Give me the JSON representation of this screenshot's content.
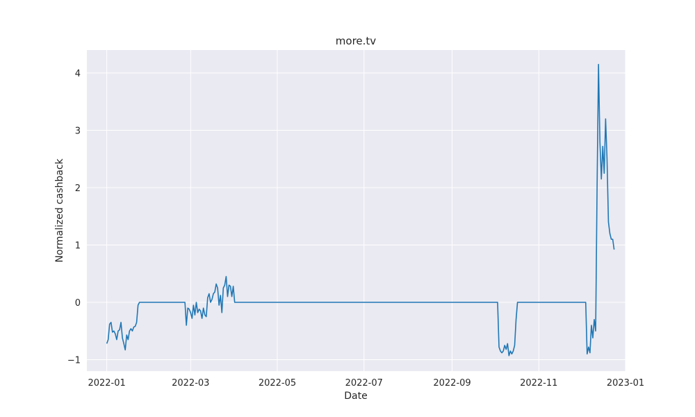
{
  "chart_data": {
    "type": "line",
    "title": "more.tv",
    "xlabel": "Date",
    "ylabel": "Normalized cashback",
    "x_tick_labels": [
      "2022-01",
      "2022-03",
      "2022-05",
      "2022-07",
      "2022-09",
      "2022-11",
      "2023-01"
    ],
    "y_tick_labels": [
      "−1",
      "0",
      "1",
      "2",
      "3",
      "4"
    ],
    "x_range": [
      "2021-12-18",
      "2023-01-01"
    ],
    "ylim": [
      -1.2,
      4.4
    ],
    "grid": true,
    "colors": {
      "background": "#eaeaf2",
      "grid": "#ffffff",
      "line": "#1f77b4"
    },
    "series": [
      {
        "points": [
          [
            "2022-01-01",
            -0.72
          ],
          [
            "2022-01-02",
            -0.65
          ],
          [
            "2022-01-03",
            -0.38
          ],
          [
            "2022-01-04",
            -0.35
          ],
          [
            "2022-01-05",
            -0.52
          ],
          [
            "2022-01-06",
            -0.5
          ],
          [
            "2022-01-07",
            -0.55
          ],
          [
            "2022-01-08",
            -0.65
          ],
          [
            "2022-01-09",
            -0.5
          ],
          [
            "2022-01-10",
            -0.48
          ],
          [
            "2022-01-11",
            -0.35
          ],
          [
            "2022-01-12",
            -0.62
          ],
          [
            "2022-01-13",
            -0.72
          ],
          [
            "2022-01-14",
            -0.83
          ],
          [
            "2022-01-15",
            -0.57
          ],
          [
            "2022-01-16",
            -0.65
          ],
          [
            "2022-01-17",
            -0.5
          ],
          [
            "2022-01-18",
            -0.46
          ],
          [
            "2022-01-19",
            -0.5
          ],
          [
            "2022-01-20",
            -0.43
          ],
          [
            "2022-01-21",
            -0.42
          ],
          [
            "2022-01-22",
            -0.35
          ],
          [
            "2022-01-23",
            -0.05
          ],
          [
            "2022-01-24",
            0.0
          ],
          [
            "2022-02-25",
            0.0
          ],
          [
            "2022-02-26",
            -0.4
          ],
          [
            "2022-02-27",
            -0.1
          ],
          [
            "2022-02-28",
            -0.12
          ],
          [
            "2022-03-01",
            -0.18
          ],
          [
            "2022-03-02",
            -0.28
          ],
          [
            "2022-03-03",
            -0.05
          ],
          [
            "2022-03-04",
            -0.22
          ],
          [
            "2022-03-05",
            0.0
          ],
          [
            "2022-03-06",
            -0.18
          ],
          [
            "2022-03-07",
            -0.12
          ],
          [
            "2022-03-08",
            -0.15
          ],
          [
            "2022-03-09",
            -0.28
          ],
          [
            "2022-03-10",
            -0.1
          ],
          [
            "2022-03-11",
            -0.22
          ],
          [
            "2022-03-12",
            -0.25
          ],
          [
            "2022-03-13",
            0.08
          ],
          [
            "2022-03-14",
            0.15
          ],
          [
            "2022-03-15",
            0.0
          ],
          [
            "2022-03-16",
            0.05
          ],
          [
            "2022-03-17",
            0.15
          ],
          [
            "2022-03-18",
            0.18
          ],
          [
            "2022-03-19",
            0.32
          ],
          [
            "2022-03-20",
            0.25
          ],
          [
            "2022-03-21",
            -0.05
          ],
          [
            "2022-03-22",
            0.12
          ],
          [
            "2022-03-23",
            -0.18
          ],
          [
            "2022-03-24",
            0.25
          ],
          [
            "2022-03-25",
            0.3
          ],
          [
            "2022-03-26",
            0.45
          ],
          [
            "2022-03-27",
            0.1
          ],
          [
            "2022-03-28",
            0.3
          ],
          [
            "2022-03-29",
            0.28
          ],
          [
            "2022-03-30",
            0.1
          ],
          [
            "2022-03-31",
            0.28
          ],
          [
            "2022-04-01",
            0.0
          ],
          [
            "2022-10-03",
            0.0
          ],
          [
            "2022-10-04",
            -0.78
          ],
          [
            "2022-10-05",
            -0.85
          ],
          [
            "2022-10-06",
            -0.88
          ],
          [
            "2022-10-07",
            -0.85
          ],
          [
            "2022-10-08",
            -0.75
          ],
          [
            "2022-10-09",
            -0.82
          ],
          [
            "2022-10-10",
            -0.72
          ],
          [
            "2022-10-11",
            -0.93
          ],
          [
            "2022-10-12",
            -0.85
          ],
          [
            "2022-10-13",
            -0.9
          ],
          [
            "2022-10-14",
            -0.85
          ],
          [
            "2022-10-15",
            -0.75
          ],
          [
            "2022-10-16",
            -0.3
          ],
          [
            "2022-10-17",
            0.0
          ],
          [
            "2022-12-04",
            0.0
          ],
          [
            "2022-12-05",
            -0.9
          ],
          [
            "2022-12-06",
            -0.78
          ],
          [
            "2022-12-07",
            -0.88
          ],
          [
            "2022-12-08",
            -0.4
          ],
          [
            "2022-12-09",
            -0.62
          ],
          [
            "2022-12-10",
            -0.3
          ],
          [
            "2022-12-11",
            -0.5
          ],
          [
            "2022-12-12",
            2.0
          ],
          [
            "2022-12-13",
            4.15
          ],
          [
            "2022-12-14",
            2.8
          ],
          [
            "2022-12-15",
            2.15
          ],
          [
            "2022-12-16",
            2.72
          ],
          [
            "2022-12-17",
            2.25
          ],
          [
            "2022-12-18",
            3.2
          ],
          [
            "2022-12-19",
            2.5
          ],
          [
            "2022-12-20",
            1.4
          ],
          [
            "2022-12-21",
            1.2
          ],
          [
            "2022-12-22",
            1.1
          ],
          [
            "2022-12-23",
            1.1
          ],
          [
            "2022-12-24",
            0.92
          ]
        ]
      }
    ]
  }
}
